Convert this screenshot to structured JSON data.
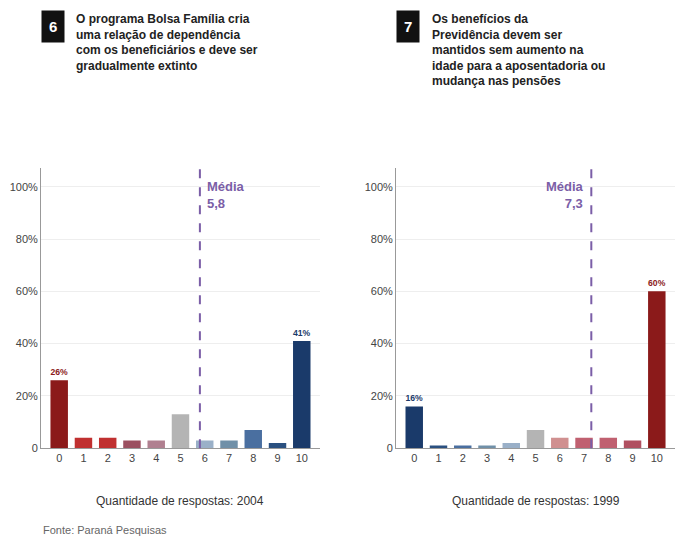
{
  "chart_data": [
    {
      "type": "bar",
      "title": "O programa Bolsa Família cria\numa relação de dependência\ncom os beneficiários e deve ser\ngradualmente extinto",
      "x": [
        0,
        1,
        2,
        3,
        4,
        5,
        6,
        7,
        8,
        9,
        10
      ],
      "values": [
        26,
        4,
        4,
        3,
        3,
        13,
        3,
        3,
        7,
        2,
        41
      ],
      "colors": [
        "#8b1a1a",
        "#c03030",
        "#c03030",
        "#9b5060",
        "#b08090",
        "#b4b4b4",
        "#9ab0c8",
        "#7090a8",
        "#4a6fa0",
        "#2a5080",
        "#1a3a6a"
      ],
      "value_labels": [
        "26%",
        null,
        null,
        null,
        null,
        null,
        null,
        null,
        null,
        null,
        "41%"
      ],
      "xlim": [
        -0.75,
        10.75
      ],
      "xticks": [
        0,
        1,
        2,
        3,
        4,
        5,
        6,
        7,
        8,
        9,
        10
      ],
      "ylim": [
        0,
        107
      ],
      "yticks": [
        0,
        {
          "value": 20,
          "label": "20%"
        },
        {
          "value": 40,
          "label": "40%"
        },
        {
          "value": 60,
          "label": "60%"
        },
        {
          "value": 80,
          "label": "80%"
        },
        {
          "value": 100,
          "label": "100%"
        }
      ],
      "grid": true,
      "annotations": [
        {
          "text": "6"
        },
        {
          "x": 5.8,
          "text": "Média\n5,8",
          "color": "#7b5ea7"
        },
        {
          "text": "Quantidade de respostas: 2004"
        },
        {
          "text": "Fonte: Paraná Pesquisas"
        }
      ]
    },
    {
      "type": "bar",
      "title": "Os benefícios da\nPrevidência devem ser\nmantidos sem aumento na\nidade para a aposentadoria ou\nmudança nas pensões",
      "x": [
        0,
        1,
        2,
        3,
        4,
        5,
        6,
        7,
        8,
        9,
        10
      ],
      "values": [
        16,
        1,
        1,
        1,
        2,
        7,
        4,
        4,
        4,
        3,
        60
      ],
      "colors": [
        "#1a3a6a",
        "#2a5080",
        "#4a6fa0",
        "#7090a8",
        "#9ab0c8",
        "#b4b4b4",
        "#d09090",
        "#c06070",
        "#c06070",
        "#b05060",
        "#8b1a1a"
      ],
      "value_labels": [
        "16%",
        null,
        null,
        null,
        null,
        null,
        null,
        null,
        null,
        null,
        "60%"
      ],
      "xlim": [
        -0.75,
        10.75
      ],
      "xticks": [
        0,
        1,
        2,
        3,
        4,
        5,
        6,
        7,
        8,
        9,
        10
      ],
      "ylim": [
        0,
        107
      ],
      "yticks": [
        0,
        {
          "value": 20,
          "label": "20%"
        },
        {
          "value": 40,
          "label": "40%"
        },
        {
          "value": 60,
          "label": "60%"
        },
        {
          "value": 80,
          "label": "80%"
        },
        {
          "value": 100,
          "label": "100%"
        }
      ],
      "grid": true,
      "annotations": [
        {
          "text": "7"
        },
        {
          "x": 7.3,
          "text": "Média\n7,3",
          "color": "#7b5ea7"
        },
        {
          "text": "Quantidade de respostas: 1999"
        }
      ]
    }
  ]
}
